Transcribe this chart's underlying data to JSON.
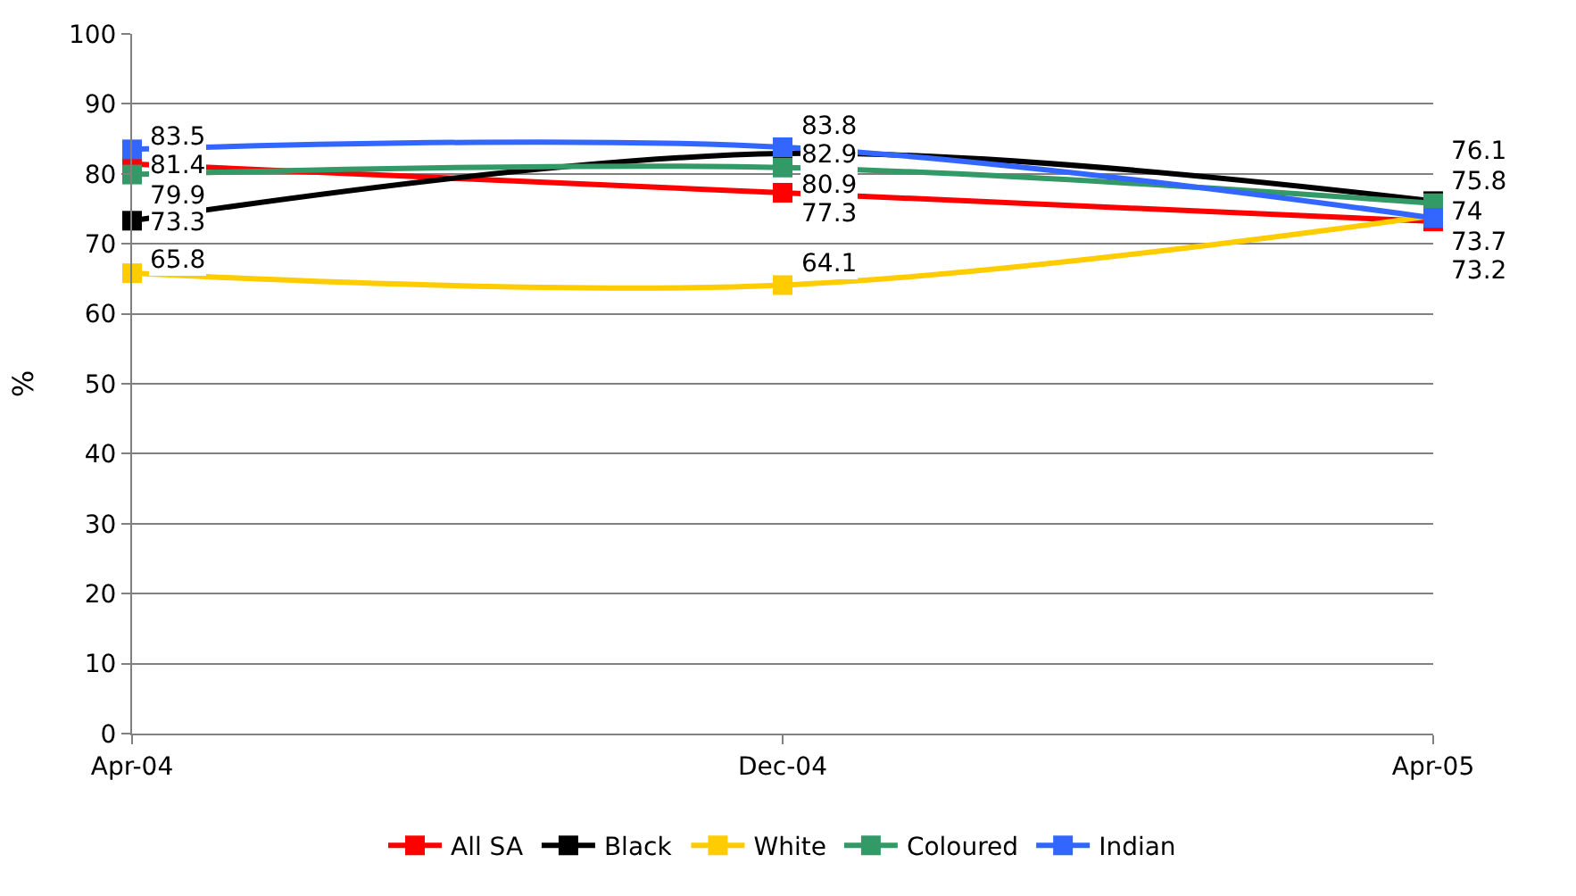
{
  "chart_data": {
    "type": "line",
    "ylabel": "%",
    "categories": [
      "Apr-04",
      "Dec-04",
      "Apr-05"
    ],
    "series": [
      {
        "name": "All SA",
        "color": "#ff0000",
        "values": [
          81.4,
          77.3,
          73.2
        ]
      },
      {
        "name": "Black",
        "color": "#000000",
        "values": [
          73.3,
          82.9,
          76.1
        ]
      },
      {
        "name": "White",
        "color": "#ffcc00",
        "values": [
          65.8,
          64.1,
          74
        ]
      },
      {
        "name": "Coloured",
        "color": "#339966",
        "values": [
          79.9,
          80.9,
          75.8
        ]
      },
      {
        "name": "Indian",
        "color": "#3366ff",
        "values": [
          83.5,
          83.8,
          73.7
        ]
      }
    ],
    "ylim": [
      0,
      100
    ],
    "yticks": [
      0,
      10,
      20,
      30,
      40,
      50,
      60,
      70,
      80,
      90,
      100
    ],
    "grid": "y",
    "legend": "bottom",
    "marker": "square",
    "line_style": "solid",
    "data_labels": true
  }
}
